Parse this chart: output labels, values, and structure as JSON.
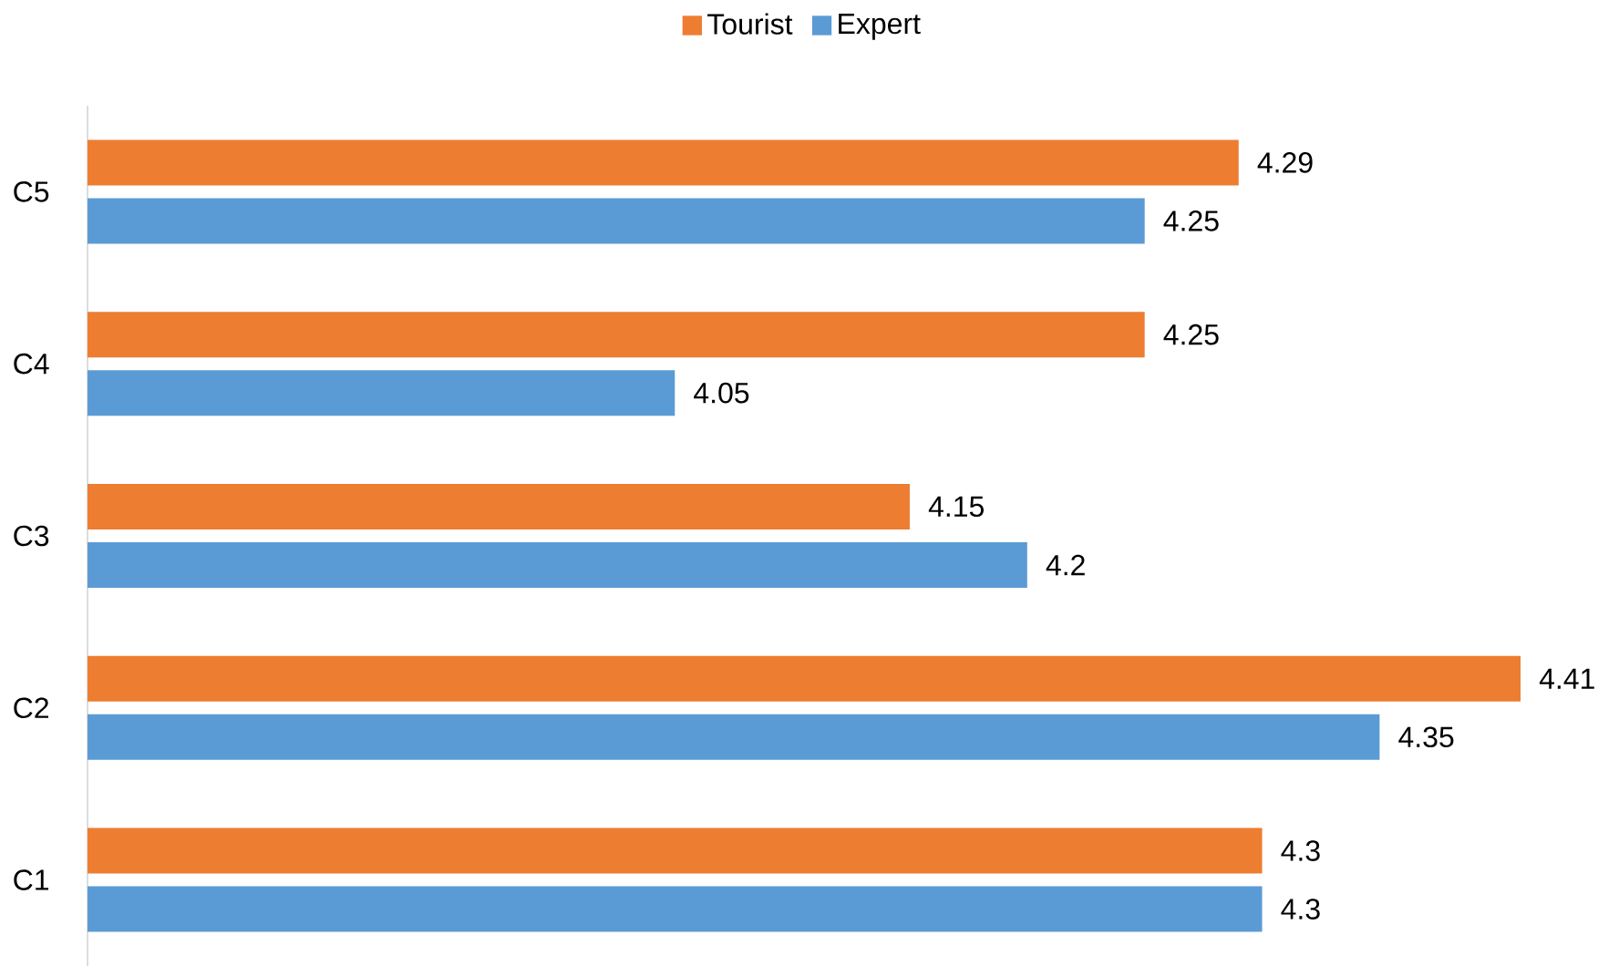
{
  "chart_data": {
    "type": "bar",
    "orientation": "horizontal",
    "categories": [
      "C5",
      "C4",
      "C3",
      "C2",
      "C1"
    ],
    "series": [
      {
        "name": "Tourist",
        "color": "#ed7d31",
        "values": [
          4.29,
          4.25,
          4.15,
          4.41,
          4.3
        ]
      },
      {
        "name": "Expert",
        "color": "#5b9bd5",
        "values": [
          4.25,
          4.05,
          4.2,
          4.35,
          4.3
        ]
      }
    ],
    "xlim": [
      3.8,
      4.41
    ],
    "data_labels": true,
    "legend": "top",
    "tick_labels": "y"
  }
}
